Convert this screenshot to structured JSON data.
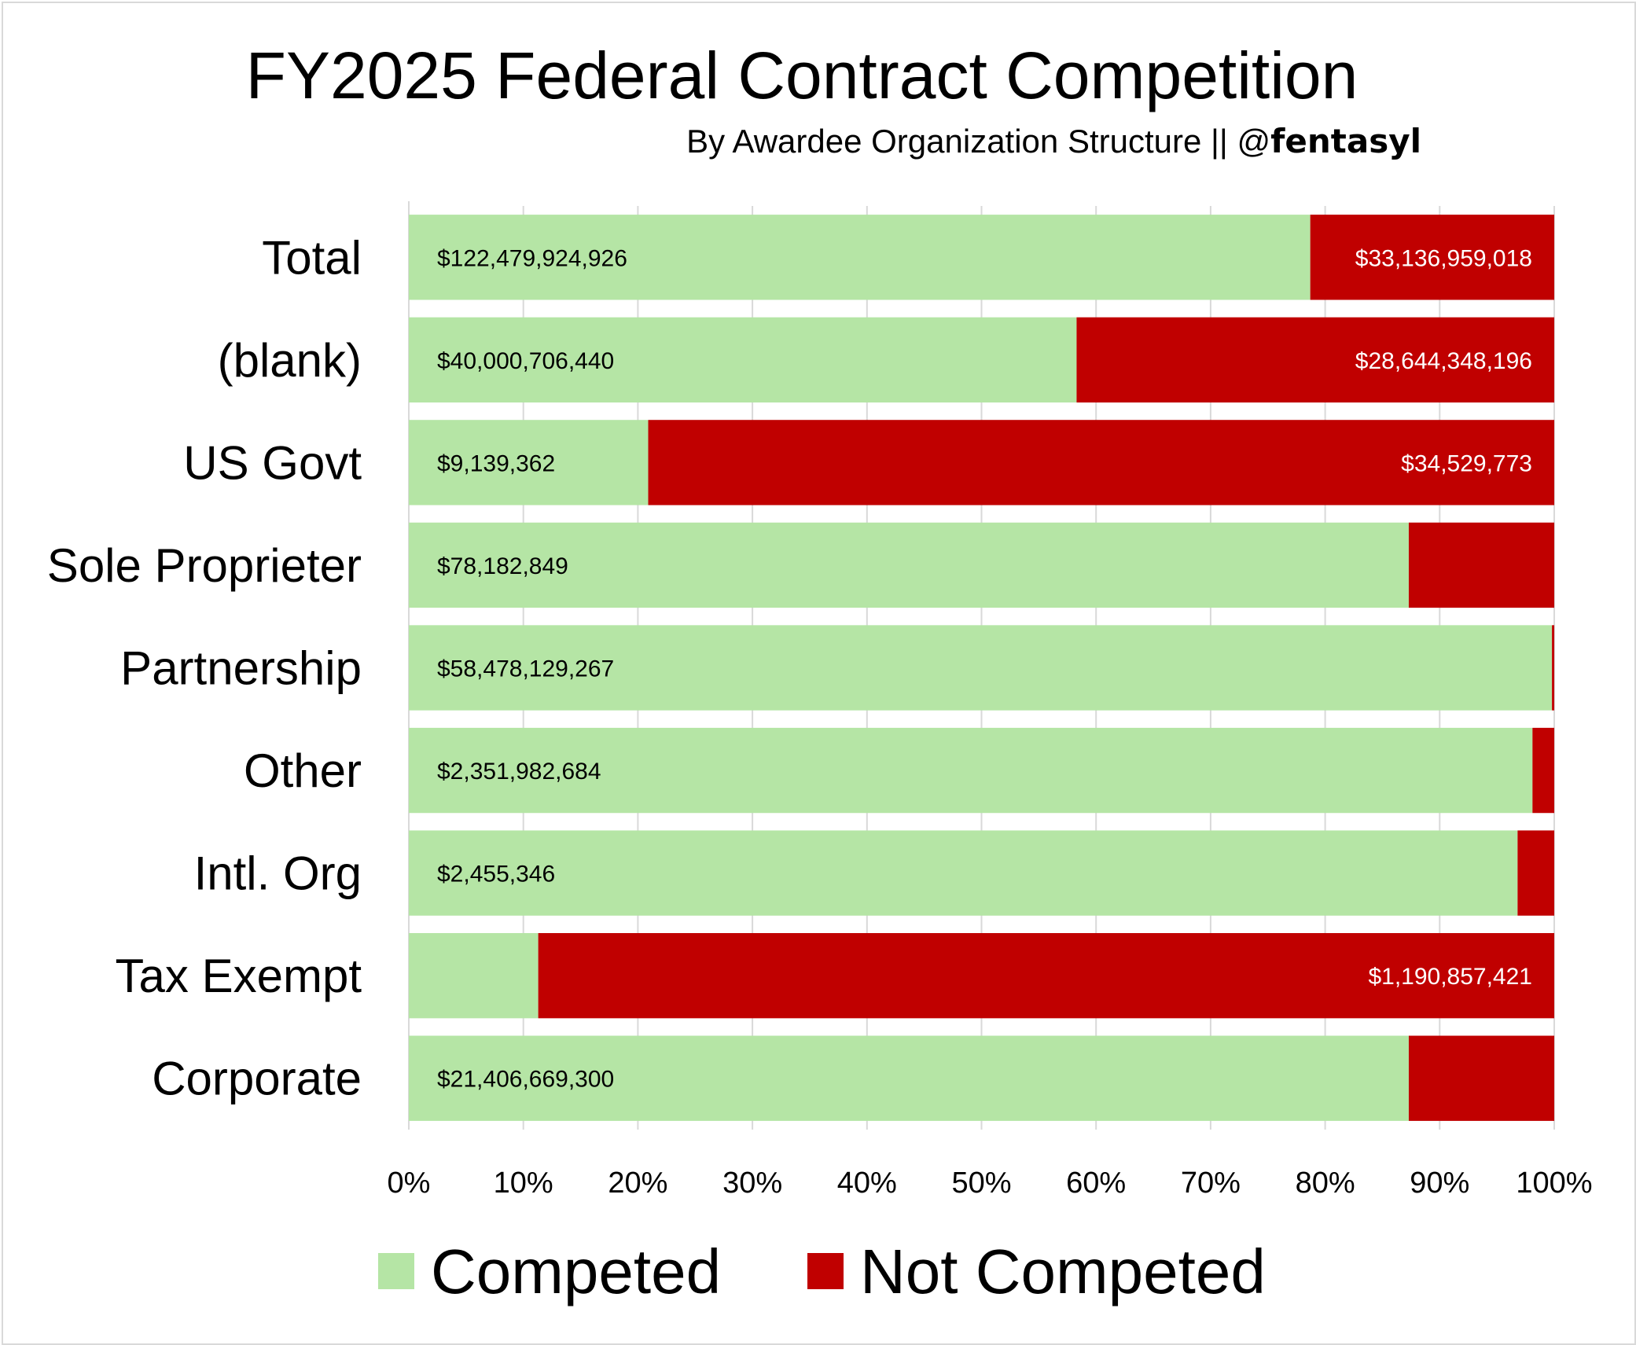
{
  "chart_data": {
    "type": "bar",
    "orientation": "horizontal",
    "stacking": "percent",
    "title": "FY2025 Federal Contract Competition",
    "subtitle": "By Awardee Organization Structure || @",
    "subtitle_handle": "fentasyl",
    "categories": [
      "Total",
      "(blank)",
      "US Govt",
      "Sole Proprieter",
      "Partnership",
      "Other",
      "Intl. Org",
      "Tax Exempt",
      "Corporate"
    ],
    "series": [
      {
        "name": "Competed",
        "color": "#b5e5a5",
        "label_color": "#000000",
        "percent": [
          78.7,
          58.3,
          20.9,
          87.3,
          99.8,
          98.1,
          96.8,
          11.3,
          87.3
        ],
        "labels": [
          "$122,479,924,926",
          "$40,000,706,440",
          "$9,139,362",
          "$78,182,849",
          "$58,478,129,267",
          "$2,351,982,684",
          "$2,455,346",
          "",
          "$21,406,669,300"
        ]
      },
      {
        "name": "Not Competed",
        "color": "#c00000",
        "label_color": "#ffffff",
        "percent": [
          21.3,
          41.7,
          79.1,
          12.7,
          0.2,
          1.9,
          3.2,
          88.7,
          12.7
        ],
        "labels": [
          "$33,136,959,018",
          "$28,644,348,196",
          "$34,529,773",
          "",
          "",
          "",
          "",
          "$1,190,857,421",
          ""
        ]
      }
    ],
    "xlim": [
      0,
      100
    ],
    "x_ticks": [
      "0%",
      "10%",
      "20%",
      "30%",
      "40%",
      "50%",
      "60%",
      "70%",
      "80%",
      "90%",
      "100%"
    ],
    "grid": true,
    "legend": "bottom"
  }
}
